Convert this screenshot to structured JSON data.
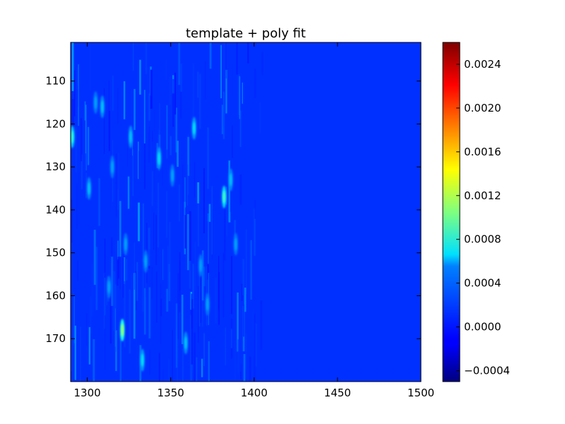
{
  "chart_data": {
    "type": "heatmap",
    "title": "template + poly fit",
    "xlabel": "",
    "ylabel": "",
    "xlim": [
      1290,
      1500
    ],
    "ylim": [
      180,
      101
    ],
    "y_inverted": true,
    "x_ticks": [
      1300,
      1350,
      1400,
      1450,
      1500
    ],
    "y_ticks": [
      110,
      120,
      130,
      140,
      150,
      160,
      170
    ],
    "colorbar": {
      "colormap": "jet",
      "vmin": -0.0005,
      "vmax": 0.0026,
      "ticks": [
        "−0.0004",
        "0.0000",
        "0.0004",
        "0.0008",
        "0.0012",
        "0.0016",
        "0.0020",
        "0.0024"
      ],
      "tick_values": [
        -0.0004,
        0.0,
        0.0004,
        0.0008,
        0.0012,
        0.0016,
        0.002,
        0.0024
      ]
    },
    "background_value": 0.0,
    "features": [
      {
        "x": 1291,
        "y": 123,
        "value": 0.0008
      },
      {
        "x": 1301,
        "y": 135,
        "value": 0.0005
      },
      {
        "x": 1305,
        "y": 115,
        "value": 0.0004
      },
      {
        "x": 1309,
        "y": 116,
        "value": 0.0005
      },
      {
        "x": 1313,
        "y": 158,
        "value": 0.0004
      },
      {
        "x": 1315,
        "y": 130,
        "value": 0.0004
      },
      {
        "x": 1321,
        "y": 168,
        "value": 0.0012
      },
      {
        "x": 1323,
        "y": 148,
        "value": 0.0004
      },
      {
        "x": 1326,
        "y": 123,
        "value": 0.0005
      },
      {
        "x": 1333,
        "y": 175,
        "value": 0.0006
      },
      {
        "x": 1335,
        "y": 152,
        "value": 0.0004
      },
      {
        "x": 1343,
        "y": 128,
        "value": 0.0006
      },
      {
        "x": 1351,
        "y": 132,
        "value": 0.0004
      },
      {
        "x": 1359,
        "y": 171,
        "value": 0.0005
      },
      {
        "x": 1364,
        "y": 121,
        "value": 0.0006
      },
      {
        "x": 1368,
        "y": 153,
        "value": 0.0004
      },
      {
        "x": 1372,
        "y": 162,
        "value": 0.0004
      },
      {
        "x": 1382,
        "y": 137,
        "value": 0.0009
      },
      {
        "x": 1386,
        "y": 133,
        "value": 0.0005
      },
      {
        "x": 1389,
        "y": 148,
        "value": 0.0004
      }
    ]
  }
}
